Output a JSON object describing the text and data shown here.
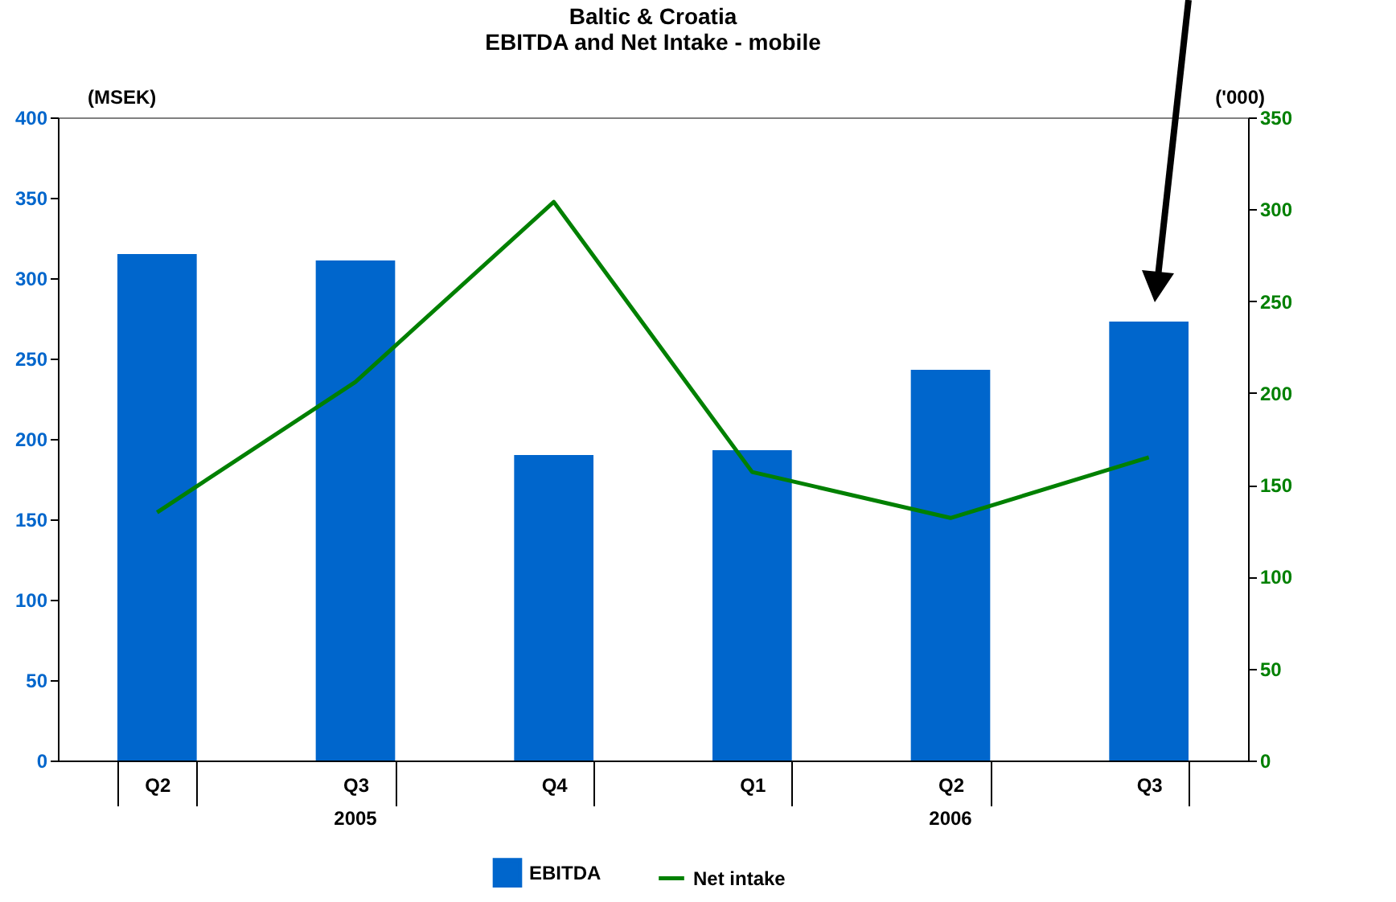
{
  "chart_data": {
    "type": "bar",
    "title": "Baltic & Croatia",
    "subtitle": "EBITDA and Net Intake - mobile",
    "ylabel": "(MSEK)",
    "y2label": "('000)",
    "categories": [
      "Q2",
      "Q3",
      "Q4",
      "Q1",
      "Q2",
      "Q3"
    ],
    "annotations": [
      "2005",
      "2006"
    ],
    "series": [
      {
        "name": "EBITDA",
        "color": "#0066cc",
        "values": [
          315,
          311,
          190,
          193,
          243,
          273
        ]
      },
      {
        "name": "Net intake",
        "type": "line",
        "axis": "y2",
        "color": "#008000",
        "values": [
          135,
          206,
          304,
          157,
          132,
          165
        ]
      }
    ],
    "ylim": [
      0,
      400
    ],
    "yticks": [
      0,
      50,
      100,
      150,
      200,
      250,
      300,
      350,
      400
    ],
    "y2lim": [
      0,
      350
    ],
    "y2ticks": [
      0,
      50,
      100,
      150,
      200,
      250,
      300,
      350
    ],
    "grid": false,
    "legend": "bottom"
  }
}
